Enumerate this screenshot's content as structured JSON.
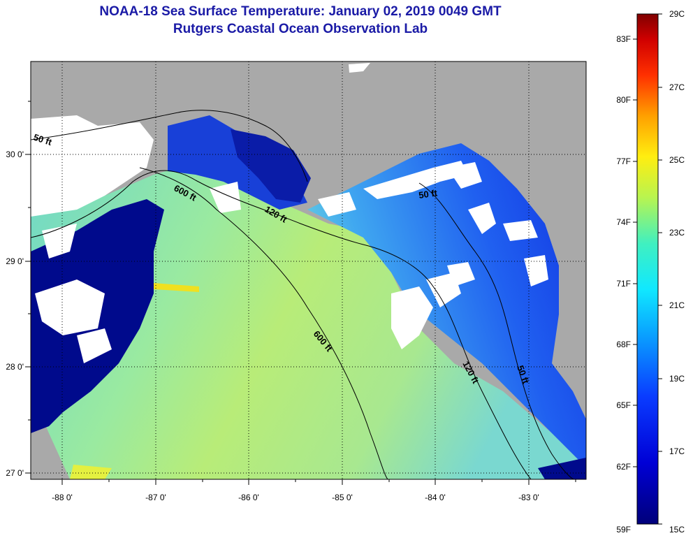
{
  "header": {
    "title": "NOAA-18 Sea Surface Temperature:  January 02, 2019 0049 GMT",
    "subtitle": "Rutgers Coastal Ocean Observation Lab"
  },
  "map": {
    "lon_ticks": [
      "-88 0'",
      "-87 0'",
      "-86 0'",
      "-85 0'",
      "-84 0'",
      "-83 0'"
    ],
    "lat_ticks": [
      "30 0'",
      "29 0'",
      "28 0'",
      "27 0'"
    ],
    "contour_labels": [
      {
        "id": "c50-west",
        "text": "50 ft"
      },
      {
        "id": "c600-north",
        "text": "600 ft"
      },
      {
        "id": "c120-north",
        "text": "120 ft"
      },
      {
        "id": "c50-east",
        "text": "50 ft"
      },
      {
        "id": "c600-south",
        "text": "600 ft"
      },
      {
        "id": "c120-south",
        "text": "120 ft"
      },
      {
        "id": "c50-south",
        "text": "50 ft"
      }
    ],
    "colors": {
      "land": "#a9a9a9",
      "cloud": "#ffffff",
      "cold": "#000a8c",
      "warm": "#c6f53c"
    }
  },
  "colorbar": {
    "fahrenheit": [
      "83F",
      "80F",
      "77F",
      "74F",
      "71F",
      "68F",
      "65F",
      "62F",
      "59F"
    ],
    "celsius": [
      "29C",
      "27C",
      "25C",
      "23C",
      "21C",
      "19C",
      "17C",
      "15C"
    ]
  }
}
